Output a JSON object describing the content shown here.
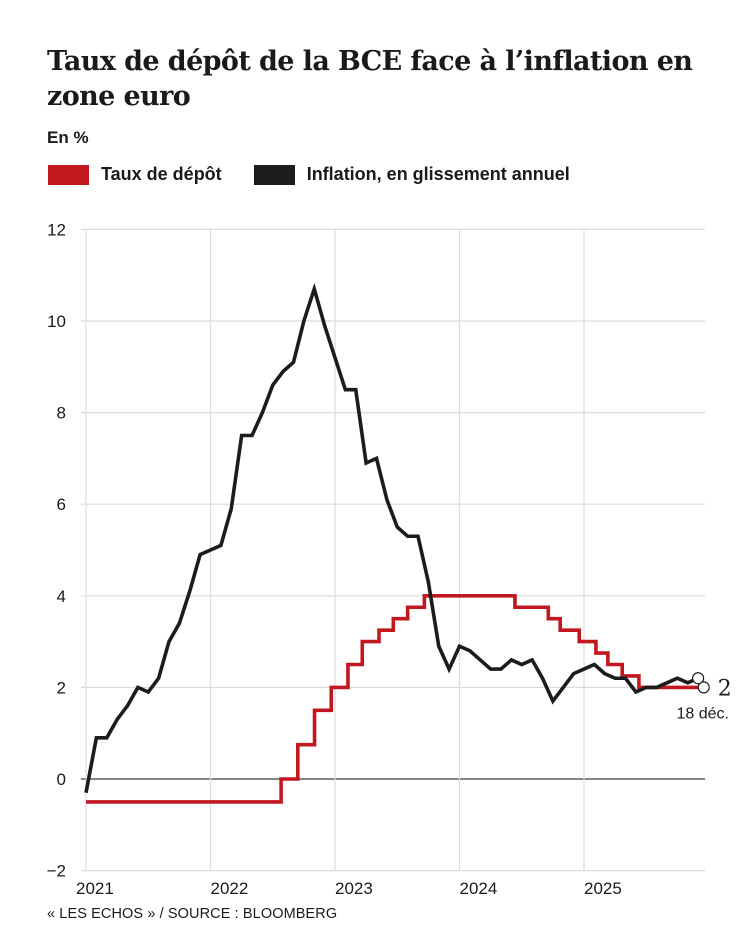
{
  "header": {
    "title": "Taux de dépôt de la BCE face à l’inflation en zone euro",
    "unit_label": "En %"
  },
  "legend": [
    {
      "label": "Taux de dépôt",
      "color": "#c1181f"
    },
    {
      "label": "Inflation, en glissement annuel",
      "color": "#1c1c1c"
    }
  ],
  "footer": {
    "source": "« LES ECHOS » / SOURCE : BLOOMBERG"
  },
  "chart_data": {
    "type": "line",
    "title": "Taux de dépôt de la BCE face à l’inflation en zone euro",
    "ylabel": "En %",
    "xlabel": "",
    "ylim": [
      -2,
      12
    ],
    "xlim": [
      "2021-01-01",
      "2025-12-31"
    ],
    "y_ticks": [
      -2,
      0,
      2,
      4,
      6,
      8,
      10,
      12
    ],
    "y_tick_labels": [
      "−2",
      "0",
      "2",
      "4",
      "6",
      "8",
      "10",
      "12"
    ],
    "x_ticks": [
      2021,
      2022,
      2023,
      2024,
      2025
    ],
    "x_tick_labels": [
      "2021",
      "2022",
      "2023",
      "2024",
      "2025"
    ],
    "grid": true,
    "legend_position": "top-left",
    "series": [
      {
        "name": "Taux de dépôt",
        "color": "#c1181f",
        "step": true,
        "points": [
          {
            "date": "2021-01-01",
            "value": -0.5
          },
          {
            "date": "2022-07-27",
            "value": 0.0
          },
          {
            "date": "2022-09-14",
            "value": 0.75
          },
          {
            "date": "2022-11-02",
            "value": 1.5
          },
          {
            "date": "2022-12-21",
            "value": 2.0
          },
          {
            "date": "2023-02-08",
            "value": 2.5
          },
          {
            "date": "2023-03-22",
            "value": 3.0
          },
          {
            "date": "2023-05-10",
            "value": 3.25
          },
          {
            "date": "2023-06-21",
            "value": 3.5
          },
          {
            "date": "2023-08-02",
            "value": 3.75
          },
          {
            "date": "2023-09-20",
            "value": 4.0
          },
          {
            "date": "2024-06-12",
            "value": 3.75
          },
          {
            "date": "2024-09-18",
            "value": 3.5
          },
          {
            "date": "2024-10-23",
            "value": 3.25
          },
          {
            "date": "2024-12-18",
            "value": 3.0
          },
          {
            "date": "2025-02-05",
            "value": 2.75
          },
          {
            "date": "2025-03-12",
            "value": 2.5
          },
          {
            "date": "2025-04-23",
            "value": 2.25
          },
          {
            "date": "2025-06-11",
            "value": 2.0
          },
          {
            "date": "2025-12-18",
            "value": 2.0
          }
        ]
      },
      {
        "name": "Inflation, en glissement annuel",
        "color": "#1c1c1c",
        "step": false,
        "start_month": "2020-12",
        "frequency": "monthly",
        "values": [
          -0.3,
          0.9,
          0.9,
          1.3,
          1.6,
          2.0,
          1.9,
          2.2,
          3.0,
          3.4,
          4.1,
          4.9,
          5.0,
          5.1,
          5.9,
          7.5,
          7.5,
          8.0,
          8.6,
          8.9,
          9.1,
          10.0,
          10.7,
          9.9,
          9.2,
          8.5,
          8.5,
          6.9,
          7.0,
          6.1,
          5.5,
          5.3,
          5.3,
          4.3,
          2.9,
          2.4,
          2.9,
          2.8,
          2.6,
          2.4,
          2.4,
          2.6,
          2.5,
          2.6,
          2.2,
          1.7,
          2.0,
          2.3,
          2.4,
          2.5,
          2.3,
          2.2,
          2.2,
          1.9,
          2.0,
          2.0,
          2.1,
          2.2,
          2.1,
          2.2
        ]
      }
    ],
    "annotations": [
      {
        "text": "2",
        "series": "Taux de dépôt",
        "value": 2
      },
      {
        "text": "18 déc.",
        "series": "Taux de dépôt",
        "date": "2025-12-18"
      }
    ]
  }
}
